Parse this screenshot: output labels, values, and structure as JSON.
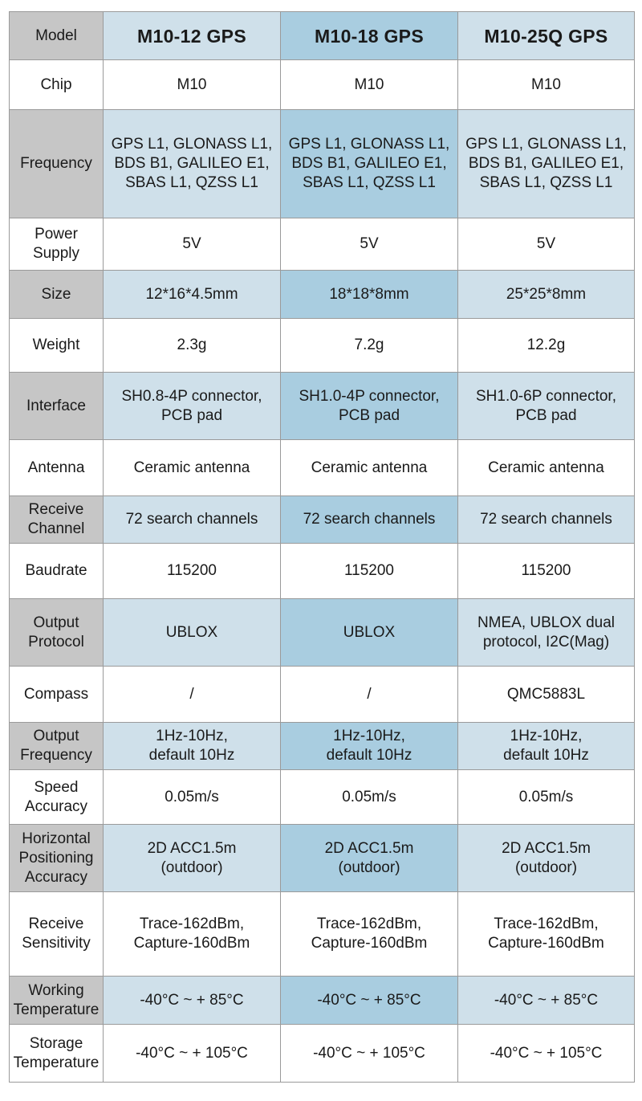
{
  "table": {
    "header": {
      "label": "Model",
      "models": [
        "M10-12 GPS",
        "M10-18 GPS",
        "M10-25Q GPS"
      ]
    },
    "rows": [
      {
        "label": "Chip",
        "values": [
          "M10",
          "M10",
          "M10"
        ]
      },
      {
        "label": "Frequency",
        "values": [
          "GPS L1, GLONASS L1,\nBDS B1, GALILEO E1,\nSBAS L1, QZSS L1",
          "GPS L1, GLONASS L1,\nBDS B1, GALILEO E1,\nSBAS L1, QZSS L1",
          "GPS L1, GLONASS L1,\nBDS B1, GALILEO E1,\nSBAS L1, QZSS L1"
        ]
      },
      {
        "label": "Power\nSupply",
        "values": [
          "5V",
          "5V",
          "5V"
        ]
      },
      {
        "label": "Size",
        "values": [
          "12*16*4.5mm",
          "18*18*8mm",
          "25*25*8mm"
        ]
      },
      {
        "label": "Weight",
        "values": [
          "2.3g",
          "7.2g",
          "12.2g"
        ]
      },
      {
        "label": "Interface",
        "values": [
          "SH0.8-4P connector,\nPCB pad",
          "SH1.0-4P connector,\nPCB pad",
          "SH1.0-6P connector,\nPCB pad"
        ]
      },
      {
        "label": "Antenna",
        "values": [
          "Ceramic antenna",
          "Ceramic antenna",
          "Ceramic antenna"
        ]
      },
      {
        "label": "Receive\nChannel",
        "values": [
          "72 search channels",
          "72 search channels",
          "72 search channels"
        ]
      },
      {
        "label": "Baudrate",
        "values": [
          "115200",
          "115200",
          "115200"
        ]
      },
      {
        "label": "Output\nProtocol",
        "values": [
          "UBLOX",
          "UBLOX",
          "NMEA, UBLOX dual\nprotocol, I2C(Mag)"
        ]
      },
      {
        "label": "Compass",
        "values": [
          "/",
          "/",
          "QMC5883L"
        ]
      },
      {
        "label": "Output\nFrequency",
        "values": [
          "1Hz-10Hz,\ndefault 10Hz",
          "1Hz-10Hz,\ndefault 10Hz",
          "1Hz-10Hz,\ndefault 10Hz"
        ]
      },
      {
        "label": "Speed\nAccuracy",
        "values": [
          "0.05m/s",
          "0.05m/s",
          "0.05m/s"
        ]
      },
      {
        "label": "Horizontal\nPositioning\nAccuracy",
        "values": [
          "2D ACC1.5m\n(outdoor)",
          "2D ACC1.5m\n(outdoor)",
          "2D ACC1.5m\n(outdoor)"
        ]
      },
      {
        "label": "Receive\nSensitivity",
        "values": [
          "Trace-162dBm,\nCapture-160dBm",
          "Trace-162dBm,\nCapture-160dBm",
          "Trace-162dBm,\nCapture-160dBm"
        ]
      },
      {
        "label": "Working\nTemperature",
        "values": [
          "-40°C ~ + 85°C",
          "-40°C ~ + 85°C",
          "-40°C ~ + 85°C"
        ]
      },
      {
        "label": "Storage\nTemperature",
        "values": [
          "-40°C ~ + 105°C",
          "-40°C ~ + 105°C",
          "-40°C ~ + 105°C"
        ]
      }
    ]
  }
}
